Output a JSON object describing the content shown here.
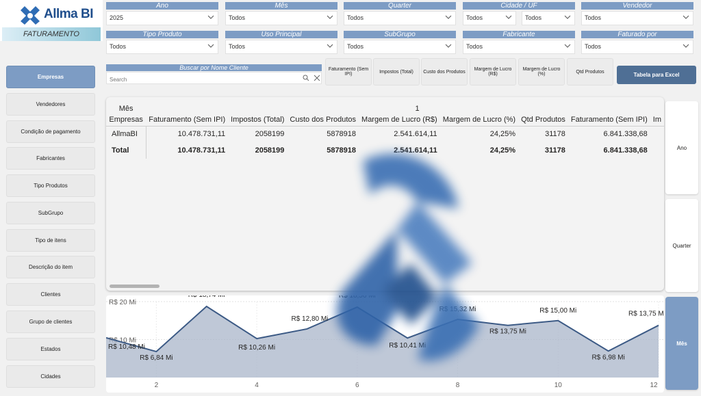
{
  "logo": {
    "brand": "Allma BI",
    "subtitle": "FATURAMENTO"
  },
  "filters": {
    "ano": {
      "label": "Ano",
      "value": "2025"
    },
    "mes": {
      "label": "Mês",
      "value": "Todos"
    },
    "quarter": {
      "label": "Quarter",
      "value": "Todos"
    },
    "cidade_uf": {
      "label": "Cidade / UF",
      "value1": "Todos",
      "value2": "Todos"
    },
    "vendedor": {
      "label": "Vendedor",
      "value": "Todos"
    },
    "tipo_produto": {
      "label": "Tipo Produto",
      "value": "Todos"
    },
    "uso_principal": {
      "label": "Uso Principal",
      "value": "Todos"
    },
    "subgrupo": {
      "label": "SubGrupo",
      "value": "Todos"
    },
    "fabricante": {
      "label": "Fabricante",
      "value": "Todos"
    },
    "faturado_por": {
      "label": "Faturado por",
      "value": "Todos"
    }
  },
  "search": {
    "label": "Buscar por Nome Cliente",
    "placeholder": "Search"
  },
  "measures": [
    "Faturamento (Sem IPI)",
    "Impostos (Total)",
    "Custo dos Produtos",
    "Margem de Lucro (R$)",
    "Margem de Lucro (%)",
    "Qtd Produtos"
  ],
  "excel_button": "Tabela para Excel",
  "nav": [
    "Empresas",
    "Vendedores",
    "Condição de pagamento",
    "Fabricantes",
    "Tipo Produtos",
    "SubGrupo",
    "Tipo de itens",
    "Descrição do item",
    "Clientes",
    "Grupo de clientes",
    "Estados",
    "Cidades"
  ],
  "table": {
    "col_header_top": "Mês",
    "row_header": "Empresas",
    "group_label": "1",
    "columns": [
      "Faturamento (Sem IPI)",
      "Impostos (Total)",
      "Custo dos Produtos",
      "Margem de Lucro (R$)",
      "Margem de Lucro (%)",
      "Qtd Produtos",
      "Faturamento (Sem IPI)",
      "Im"
    ],
    "rows": [
      {
        "name": "AllmaBI",
        "values": [
          "10.478.731,11",
          "2058199",
          "5878918",
          "2.541.614,11",
          "24,25%",
          "31178",
          "6.841.338,68",
          ""
        ]
      },
      {
        "name": "Total",
        "values": [
          "10.478.731,11",
          "2058199",
          "5878918",
          "2.541.614,11",
          "24,25%",
          "31178",
          "6.841.338,68",
          ""
        ]
      }
    ]
  },
  "side_buttons": [
    "Ano",
    "Quarter",
    "Mês"
  ],
  "colors": {
    "accent": "#7d9cc4",
    "dark_button": "#4f6f95",
    "area": "#a9b6c9",
    "line": "#3c5a85"
  },
  "chart_data": {
    "type": "area",
    "x": [
      1,
      2,
      3,
      4,
      5,
      6,
      7,
      8,
      9,
      10,
      11,
      12
    ],
    "xticks": [
      "2",
      "4",
      "6",
      "8",
      "10",
      "12"
    ],
    "yticks": [
      "R$ 10 Mi",
      "R$ 20 Mi"
    ],
    "values": [
      10.48,
      6.84,
      18.74,
      10.26,
      12.8,
      18.56,
      10.41,
      15.32,
      13.75,
      15.0,
      6.98,
      13.75
    ],
    "labels": [
      "R$ 10,48 Mi",
      "R$ 6,84 Mi",
      "R$ 18,74 Mi",
      "R$ 10,26 Mi",
      "R$ 12,80 Mi",
      "R$ 18,56 Mi",
      "R$ 10,41 Mi",
      "R$ 15,32 Mi",
      "R$ 13,75 Mi",
      "R$ 15,00 Mi",
      "R$ 6,98 Mi",
      "R$ 13,75 Mi"
    ],
    "ylim": [
      0,
      20
    ]
  }
}
